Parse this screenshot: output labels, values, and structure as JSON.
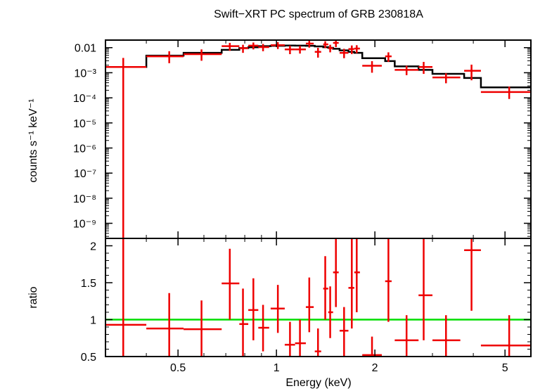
{
  "chart_data": {
    "type": "scatter",
    "title": "Swift−XRT PC spectrum of GRB 230818A",
    "xlabel": "Energy (keV)",
    "x_scale": "log",
    "xlim": [
      0.3,
      6
    ],
    "x_ticks": [
      {
        "value": 0.5,
        "label": "0.5"
      },
      {
        "value": 1,
        "label": "1"
      },
      {
        "value": 2,
        "label": "2"
      },
      {
        "value": 5,
        "label": "5"
      }
    ],
    "colors": {
      "data": "#ee0000",
      "model": "#000000",
      "unity": "#00dd00"
    },
    "panels": [
      {
        "id": "spectrum",
        "ylabel": "counts s⁻¹ keV⁻¹",
        "y_scale": "log",
        "ylim": [
          2.5e-10,
          0.02
        ],
        "y_ticks": [
          {
            "value": 0.01,
            "label": "0.01"
          },
          {
            "value": 0.001,
            "label": "10⁻³"
          },
          {
            "value": 0.0001,
            "label": "10⁻⁴"
          },
          {
            "value": 1e-05,
            "label": "10⁻⁵"
          },
          {
            "value": 1e-06,
            "label": "10⁻⁶"
          },
          {
            "value": 1e-07,
            "label": "10⁻⁷"
          },
          {
            "value": 1e-08,
            "label": "10⁻⁸"
          },
          {
            "value": 1e-09,
            "label": "10⁻⁹"
          }
        ],
        "data": [
          {
            "x": 0.34,
            "xlo": 0.3,
            "xhi": 0.4,
            "y": 0.0017,
            "ylo": 2.5e-10,
            "yhi": 0.0039
          },
          {
            "x": 0.47,
            "xlo": 0.4,
            "xhi": 0.52,
            "y": 0.0045,
            "ylo": 0.0024,
            "yhi": 0.0072
          },
          {
            "x": 0.59,
            "xlo": 0.52,
            "xhi": 0.68,
            "y": 0.0055,
            "ylo": 0.003,
            "yhi": 0.0085
          },
          {
            "x": 0.72,
            "xlo": 0.68,
            "xhi": 0.77,
            "y": 0.0115,
            "ylo": 0.0075,
            "yhi": 0.0155
          },
          {
            "x": 0.79,
            "xlo": 0.77,
            "xhi": 0.82,
            "y": 0.0095,
            "ylo": 0.0062,
            "yhi": 0.013
          },
          {
            "x": 0.85,
            "xlo": 0.82,
            "xhi": 0.88,
            "y": 0.012,
            "ylo": 0.0085,
            "yhi": 0.016
          },
          {
            "x": 0.91,
            "xlo": 0.88,
            "xhi": 0.95,
            "y": 0.0105,
            "ylo": 0.0072,
            "yhi": 0.014
          },
          {
            "x": 1.01,
            "xlo": 0.96,
            "xhi": 1.06,
            "y": 0.0125,
            "ylo": 0.0088,
            "yhi": 0.0165
          },
          {
            "x": 1.1,
            "xlo": 1.06,
            "xhi": 1.14,
            "y": 0.0085,
            "ylo": 0.0055,
            "yhi": 0.012
          },
          {
            "x": 1.18,
            "xlo": 1.14,
            "xhi": 1.23,
            "y": 0.0085,
            "ylo": 0.0058,
            "yhi": 0.0118
          },
          {
            "x": 1.26,
            "xlo": 1.23,
            "xhi": 1.3,
            "y": 0.0145,
            "ylo": 0.01,
            "yhi": 0.019
          },
          {
            "x": 1.34,
            "xlo": 1.31,
            "xhi": 1.37,
            "y": 0.0068,
            "ylo": 0.004,
            "yhi": 0.0098
          },
          {
            "x": 1.41,
            "xlo": 1.39,
            "xhi": 1.44,
            "y": 0.0135,
            "ylo": 0.0095,
            "yhi": 0.018
          },
          {
            "x": 1.46,
            "xlo": 1.44,
            "xhi": 1.49,
            "y": 0.0095,
            "ylo": 0.0065,
            "yhi": 0.013
          },
          {
            "x": 1.52,
            "xlo": 1.49,
            "xhi": 1.55,
            "y": 0.0155,
            "ylo": 0.0105,
            "yhi": 0.0198
          },
          {
            "x": 1.61,
            "xlo": 1.56,
            "xhi": 1.66,
            "y": 0.0062,
            "ylo": 0.0038,
            "yhi": 0.009
          },
          {
            "x": 1.7,
            "xlo": 1.66,
            "xhi": 1.73,
            "y": 0.0088,
            "ylo": 0.0055,
            "yhi": 0.0122
          },
          {
            "x": 1.76,
            "xlo": 1.73,
            "xhi": 1.8,
            "y": 0.0092,
            "ylo": 0.006,
            "yhi": 0.0125
          },
          {
            "x": 1.96,
            "xlo": 1.83,
            "xhi": 2.1,
            "y": 0.0019,
            "ylo": 0.001,
            "yhi": 0.0029
          },
          {
            "x": 2.2,
            "xlo": 2.15,
            "xhi": 2.25,
            "y": 0.0045,
            "ylo": 0.0027,
            "yhi": 0.0065
          },
          {
            "x": 2.5,
            "xlo": 2.3,
            "xhi": 2.72,
            "y": 0.0013,
            "ylo": 0.0008,
            "yhi": 0.0019
          },
          {
            "x": 2.82,
            "xlo": 2.72,
            "xhi": 3.0,
            "y": 0.0017,
            "ylo": 0.0009,
            "yhi": 0.0027
          },
          {
            "x": 3.3,
            "xlo": 3.0,
            "xhi": 3.65,
            "y": 0.00065,
            "ylo": 0.00038,
            "yhi": 0.00095
          },
          {
            "x": 3.95,
            "xlo": 3.75,
            "xhi": 4.22,
            "y": 0.0012,
            "ylo": 0.0005,
            "yhi": 0.0021
          },
          {
            "x": 5.15,
            "xlo": 4.22,
            "xhi": 6.0,
            "y": 0.00017,
            "ylo": 9e-05,
            "yhi": 0.00028
          }
        ],
        "model_step": [
          {
            "xlo": 0.3,
            "xhi": 0.4,
            "y": 0.0017
          },
          {
            "xlo": 0.4,
            "xhi": 0.52,
            "y": 0.0048
          },
          {
            "xlo": 0.52,
            "xhi": 0.68,
            "y": 0.0062
          },
          {
            "xlo": 0.68,
            "xhi": 0.77,
            "y": 0.0082
          },
          {
            "xlo": 0.77,
            "xhi": 0.82,
            "y": 0.0096
          },
          {
            "xlo": 0.82,
            "xhi": 0.88,
            "y": 0.0103
          },
          {
            "xlo": 0.88,
            "xhi": 0.96,
            "y": 0.0115
          },
          {
            "xlo": 0.96,
            "xhi": 1.06,
            "y": 0.0118
          },
          {
            "xlo": 1.06,
            "xhi": 1.14,
            "y": 0.0121
          },
          {
            "xlo": 1.14,
            "xhi": 1.23,
            "y": 0.012
          },
          {
            "xlo": 1.23,
            "xhi": 1.31,
            "y": 0.0118
          },
          {
            "xlo": 1.31,
            "xhi": 1.39,
            "y": 0.0112
          },
          {
            "xlo": 1.39,
            "xhi": 1.44,
            "y": 0.0104
          },
          {
            "xlo": 1.44,
            "xhi": 1.49,
            "y": 0.0098
          },
          {
            "xlo": 1.49,
            "xhi": 1.56,
            "y": 0.009
          },
          {
            "xlo": 1.56,
            "xhi": 1.66,
            "y": 0.0078
          },
          {
            "xlo": 1.66,
            "xhi": 1.73,
            "y": 0.0068
          },
          {
            "xlo": 1.73,
            "xhi": 1.83,
            "y": 0.0062
          },
          {
            "xlo": 1.83,
            "xhi": 2.15,
            "y": 0.0038
          },
          {
            "xlo": 2.15,
            "xhi": 2.3,
            "y": 0.0029
          },
          {
            "xlo": 2.3,
            "xhi": 2.72,
            "y": 0.0018
          },
          {
            "xlo": 2.72,
            "xhi": 3.0,
            "y": 0.0013
          },
          {
            "xlo": 3.0,
            "xhi": 3.75,
            "y": 0.0009
          },
          {
            "xlo": 3.75,
            "xhi": 4.22,
            "y": 0.00062
          },
          {
            "xlo": 4.22,
            "xhi": 6.0,
            "y": 0.00026
          }
        ]
      },
      {
        "id": "ratio",
        "ylabel": "ratio",
        "y_scale": "linear",
        "ylim": [
          0.5,
          2.1
        ],
        "y_ticks": [
          {
            "value": 0.5,
            "label": "0.5"
          },
          {
            "value": 1,
            "label": "1"
          },
          {
            "value": 1.5,
            "label": "1.5"
          },
          {
            "value": 2,
            "label": "2"
          }
        ],
        "reference_line": 1,
        "data": [
          {
            "x": 0.34,
            "xlo": 0.3,
            "xhi": 0.4,
            "y": 0.93,
            "ylo": 0.5,
            "yhi": 2.1
          },
          {
            "x": 0.47,
            "xlo": 0.4,
            "xhi": 0.52,
            "y": 0.88,
            "ylo": 0.5,
            "yhi": 1.36
          },
          {
            "x": 0.59,
            "xlo": 0.52,
            "xhi": 0.68,
            "y": 0.87,
            "ylo": 0.5,
            "yhi": 1.26
          },
          {
            "x": 0.72,
            "xlo": 0.68,
            "xhi": 0.77,
            "y": 1.49,
            "ylo": 1.0,
            "yhi": 1.96
          },
          {
            "x": 0.79,
            "xlo": 0.77,
            "xhi": 0.82,
            "y": 0.94,
            "ylo": 0.5,
            "yhi": 1.42
          },
          {
            "x": 0.85,
            "xlo": 0.82,
            "xhi": 0.88,
            "y": 1.13,
            "ylo": 0.72,
            "yhi": 1.56
          },
          {
            "x": 0.91,
            "xlo": 0.88,
            "xhi": 0.95,
            "y": 0.89,
            "ylo": 0.57,
            "yhi": 1.2
          },
          {
            "x": 1.01,
            "xlo": 0.96,
            "xhi": 1.06,
            "y": 1.15,
            "ylo": 0.82,
            "yhi": 1.47
          },
          {
            "x": 1.1,
            "xlo": 1.06,
            "xhi": 1.14,
            "y": 0.66,
            "ylo": 0.5,
            "yhi": 0.97
          },
          {
            "x": 1.18,
            "xlo": 1.14,
            "xhi": 1.23,
            "y": 0.68,
            "ylo": 0.5,
            "yhi": 1.0
          },
          {
            "x": 1.26,
            "xlo": 1.23,
            "xhi": 1.3,
            "y": 1.17,
            "ylo": 0.83,
            "yhi": 1.57
          },
          {
            "x": 1.34,
            "xlo": 1.31,
            "xhi": 1.37,
            "y": 0.57,
            "ylo": 0.5,
            "yhi": 0.88
          },
          {
            "x": 1.41,
            "xlo": 1.39,
            "xhi": 1.44,
            "y": 1.42,
            "ylo": 1.0,
            "yhi": 1.86
          },
          {
            "x": 1.46,
            "xlo": 1.44,
            "xhi": 1.49,
            "y": 1.1,
            "ylo": 0.75,
            "yhi": 1.45
          },
          {
            "x": 1.52,
            "xlo": 1.49,
            "xhi": 1.55,
            "y": 1.64,
            "ylo": 1.17,
            "yhi": 2.1
          },
          {
            "x": 1.61,
            "xlo": 1.56,
            "xhi": 1.66,
            "y": 0.85,
            "ylo": 0.5,
            "yhi": 1.17
          },
          {
            "x": 1.7,
            "xlo": 1.66,
            "xhi": 1.73,
            "y": 1.43,
            "ylo": 0.88,
            "yhi": 2.1
          },
          {
            "x": 1.76,
            "xlo": 1.73,
            "xhi": 1.8,
            "y": 1.64,
            "ylo": 1.1,
            "yhi": 2.1
          },
          {
            "x": 1.96,
            "xlo": 1.83,
            "xhi": 2.1,
            "y": 0.52,
            "ylo": 0.5,
            "yhi": 0.77
          },
          {
            "x": 2.2,
            "xlo": 2.15,
            "xhi": 2.25,
            "y": 1.52,
            "ylo": 0.97,
            "yhi": 2.1
          },
          {
            "x": 2.5,
            "xlo": 2.3,
            "xhi": 2.72,
            "y": 0.72,
            "ylo": 0.5,
            "yhi": 1.06
          },
          {
            "x": 2.82,
            "xlo": 2.72,
            "xhi": 3.0,
            "y": 1.33,
            "ylo": 0.72,
            "yhi": 2.1
          },
          {
            "x": 3.3,
            "xlo": 3.0,
            "xhi": 3.65,
            "y": 0.72,
            "ylo": 0.5,
            "yhi": 1.06
          },
          {
            "x": 3.95,
            "xlo": 3.75,
            "xhi": 4.22,
            "y": 1.94,
            "ylo": 1.12,
            "yhi": 2.1
          },
          {
            "x": 5.15,
            "xlo": 4.22,
            "xhi": 6.0,
            "y": 0.65,
            "ylo": 0.5,
            "yhi": 1.06
          }
        ]
      }
    ]
  }
}
